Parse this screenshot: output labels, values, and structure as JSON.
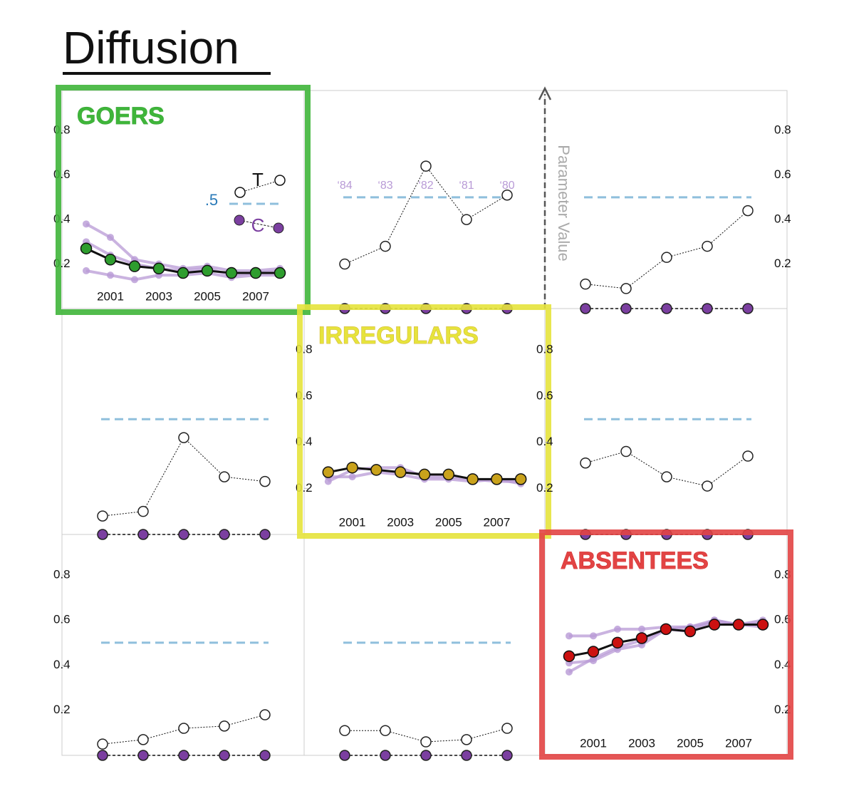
{
  "title": "Diffusion",
  "axis_label": "Parameter Value",
  "legend": {
    "t": "T",
    "c": "C",
    "reference_label": ".5"
  },
  "chart_data": [
    {
      "type": "line",
      "title": "GOERS",
      "color": "#3fb53a",
      "marker": "#2e9d2e",
      "x": [
        2000,
        2001,
        2002,
        2003,
        2004,
        2005,
        2006,
        2007,
        2008
      ],
      "xlim": [
        1999,
        2009
      ],
      "xticks": [
        2001,
        2003,
        2005,
        2007
      ],
      "ylim": [
        0,
        0.98
      ],
      "yticks": [
        0.2,
        0.4,
        0.6,
        0.8
      ],
      "series": [
        {
          "color": "#b89ad6",
          "values": [
            0.38,
            0.32,
            0.22,
            0.2,
            0.18,
            0.19,
            0.17,
            0.17,
            0.18
          ]
        },
        {
          "color": "#b89ad6",
          "values": [
            0.3,
            0.24,
            0.2,
            0.18,
            0.17,
            0.18,
            0.15,
            0.16,
            0.17
          ]
        },
        {
          "color": "#b89ad6",
          "values": [
            0.17,
            0.15,
            0.13,
            0.15,
            0.15,
            0.16,
            0.14,
            0.15,
            0.15
          ]
        },
        {
          "color": "#111111",
          "values": [
            0.27,
            0.22,
            0.19,
            0.18,
            0.16,
            0.17,
            0.16,
            0.16,
            0.16
          ]
        }
      ]
    },
    {
      "type": "pair",
      "ylim": [
        0,
        0.98
      ],
      "reference": 0.5,
      "categories": [
        "‘84",
        "‘83",
        "‘82",
        "‘81",
        "‘80"
      ],
      "series": [
        {
          "values": [
            0.2,
            0.28,
            0.64,
            0.4,
            0.51
          ]
        },
        {
          "values": [
            0,
            0,
            0,
            0,
            0
          ]
        }
      ]
    },
    {
      "type": "pair",
      "ylim": [
        0,
        0.98
      ],
      "reference": 0.5,
      "yticks": [
        0.2,
        0.4,
        0.6,
        0.8
      ],
      "series": [
        {
          "values": [
            0.11,
            0.09,
            0.23,
            0.28,
            0.44
          ]
        },
        {
          "values": [
            0,
            0,
            0,
            0,
            0
          ]
        }
      ]
    },
    {
      "type": "pair",
      "ylim": [
        0,
        0.98
      ],
      "reference": 0.5,
      "series": [
        {
          "values": [
            0.08,
            0.1,
            0.42,
            0.25,
            0.23
          ]
        },
        {
          "values": [
            0,
            0,
            0,
            0,
            0
          ]
        }
      ]
    },
    {
      "type": "line",
      "title": "IRREGULARS",
      "color": "#e6e33c",
      "marker": "#c9a21c",
      "x": [
        2000,
        2001,
        2002,
        2003,
        2004,
        2005,
        2006,
        2007,
        2008
      ],
      "xlim": [
        1999,
        2009
      ],
      "xticks": [
        2001,
        2003,
        2005,
        2007
      ],
      "ylim": [
        0,
        0.98
      ],
      "yticks": [
        0.2,
        0.4,
        0.6,
        0.8
      ],
      "series": [
        {
          "color": "#b89ad6",
          "values": [
            0.23,
            0.28,
            0.29,
            0.29,
            0.25,
            0.25,
            0.24,
            0.23,
            0.23
          ]
        },
        {
          "color": "#b89ad6",
          "values": [
            0.25,
            0.25,
            0.27,
            0.26,
            0.24,
            0.24,
            0.23,
            0.24,
            0.22
          ]
        },
        {
          "color": "#111111",
          "values": [
            0.27,
            0.29,
            0.28,
            0.27,
            0.26,
            0.26,
            0.24,
            0.24,
            0.24
          ]
        }
      ]
    },
    {
      "type": "pair",
      "ylim": [
        0,
        0.98
      ],
      "reference": 0.5,
      "yticks": [
        0.2,
        0.4,
        0.6,
        0.8
      ],
      "series": [
        {
          "values": [
            0.31,
            0.36,
            0.25,
            0.21,
            0.34
          ]
        },
        {
          "values": [
            0,
            0,
            0,
            0,
            0
          ]
        }
      ]
    },
    {
      "type": "pair",
      "ylim": [
        0,
        0.98
      ],
      "reference": 0.5,
      "yticks": [
        0.2,
        0.4,
        0.6,
        0.8
      ],
      "series": [
        {
          "values": [
            0.05,
            0.07,
            0.12,
            0.13,
            0.18
          ]
        },
        {
          "values": [
            0,
            0,
            0,
            0,
            0
          ]
        }
      ]
    },
    {
      "type": "pair",
      "ylim": [
        0,
        0.98
      ],
      "reference": 0.5,
      "series": [
        {
          "values": [
            0.11,
            0.11,
            0.06,
            0.07,
            0.12
          ]
        },
        {
          "values": [
            0,
            0,
            0,
            0,
            0
          ]
        }
      ]
    },
    {
      "type": "line",
      "title": "ABSENTEES",
      "color": "#e24444",
      "marker": "#cc1111",
      "x": [
        2000,
        2001,
        2002,
        2003,
        2004,
        2005,
        2006,
        2007,
        2008
      ],
      "xlim": [
        1999,
        2009
      ],
      "xticks": [
        2001,
        2003,
        2005,
        2007
      ],
      "ylim": [
        0,
        0.98
      ],
      "yticks": [
        0.2,
        0.4,
        0.6,
        0.8
      ],
      "series": [
        {
          "color": "#b89ad6",
          "values": [
            0.53,
            0.53,
            0.56,
            0.56,
            0.57,
            0.57,
            0.6,
            0.58,
            0.6
          ]
        },
        {
          "color": "#b89ad6",
          "values": [
            0.37,
            0.43,
            0.48,
            0.51,
            0.56,
            0.55,
            0.6,
            0.58,
            0.59
          ]
        },
        {
          "color": "#b89ad6",
          "values": [
            0.41,
            0.42,
            0.47,
            0.49,
            0.56,
            0.57,
            0.59,
            0.58,
            0.57
          ]
        },
        {
          "color": "#111111",
          "values": [
            0.44,
            0.46,
            0.5,
            0.52,
            0.56,
            0.55,
            0.58,
            0.58,
            0.58
          ]
        }
      ]
    }
  ]
}
